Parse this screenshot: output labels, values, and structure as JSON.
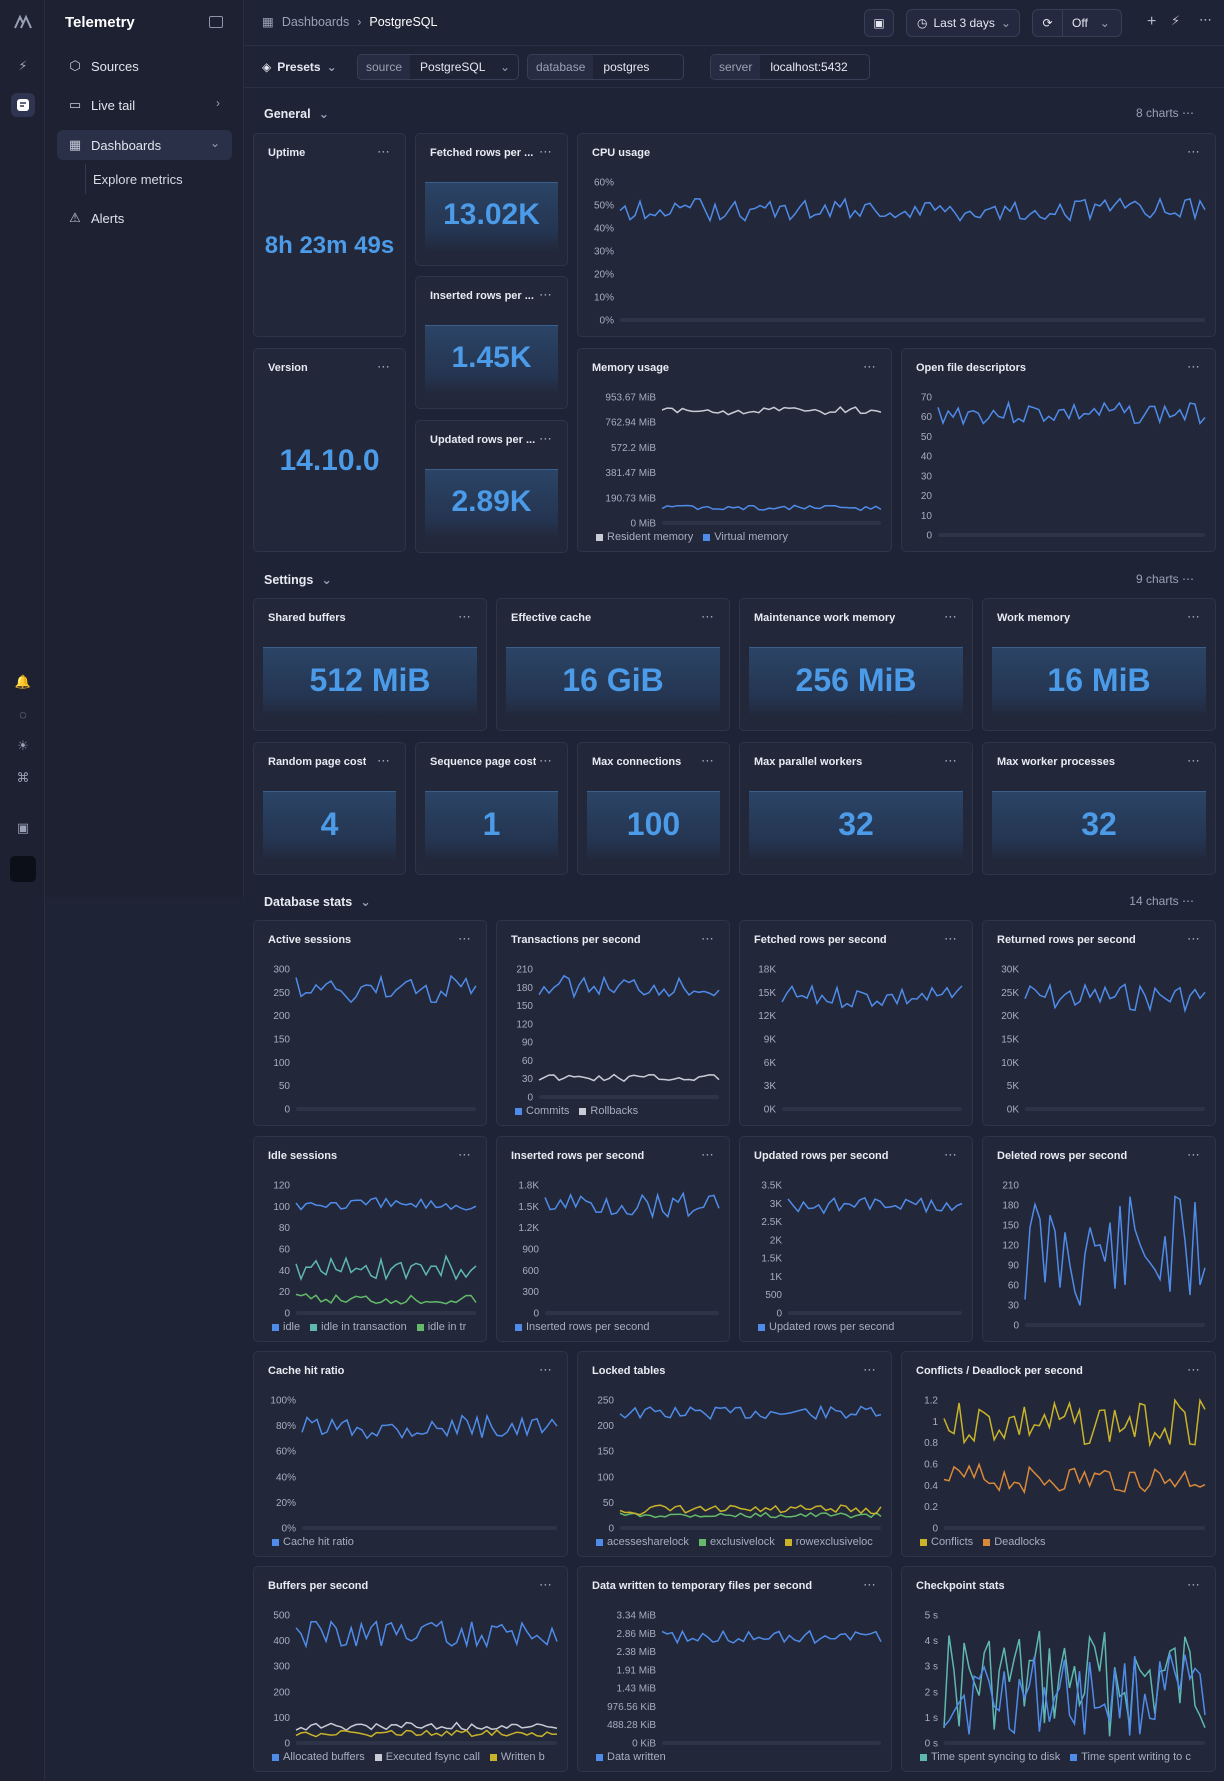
{
  "app": {
    "title": "Telemetry"
  },
  "nav": {
    "sources": "Sources",
    "live_tail": "Live tail",
    "dashboards": "Dashboards",
    "explore": "Explore metrics",
    "alerts": "Alerts"
  },
  "breadcrumb": {
    "parent": "Dashboards",
    "current": "PostgreSQL"
  },
  "toolbar": {
    "range": "Last 3 days",
    "refresh": "Off"
  },
  "filters": {
    "presets": "Presets",
    "source_key": "source",
    "source_val": "PostgreSQL",
    "db_key": "database",
    "db_val": "postgres",
    "server_key": "server",
    "server_val": "localhost:5432"
  },
  "sections": {
    "general": "General",
    "general_count": "8 charts",
    "settings": "Settings",
    "settings_count": "9 charts",
    "dbstats": "Database stats",
    "dbstats_count": "14 charts"
  },
  "stats": {
    "uptime": {
      "title": "Uptime",
      "value": "8h 23m 49s"
    },
    "version": {
      "title": "Version",
      "value": "14.10.0"
    },
    "fetched": {
      "title": "Fetched rows per ...",
      "value": "13.02K"
    },
    "inserted": {
      "title": "Inserted rows per ...",
      "value": "1.45K"
    },
    "updated": {
      "title": "Updated rows per ...",
      "value": "2.89K"
    },
    "shared": {
      "title": "Shared buffers",
      "value": "512 MiB"
    },
    "effcache": {
      "title": "Effective cache",
      "value": "16 GiB"
    },
    "maintwm": {
      "title": "Maintenance work memory",
      "value": "256 MiB"
    },
    "workmem": {
      "title": "Work memory",
      "value": "16 MiB"
    },
    "rpc": {
      "title": "Random page cost",
      "value": "4"
    },
    "spc": {
      "title": "Sequence page cost",
      "value": "1"
    },
    "maxconn": {
      "title": "Max connections",
      "value": "100"
    },
    "mpw": {
      "title": "Max parallel workers",
      "value": "32"
    },
    "mwp": {
      "title": "Max worker processes",
      "value": "32"
    }
  },
  "charts": {
    "cpu": {
      "title": "CPU usage",
      "ticks": [
        "60%",
        "50%",
        "40%",
        "30%",
        "20%",
        "10%",
        "0%"
      ],
      "legend": []
    },
    "mem": {
      "title": "Memory usage",
      "ticks": [
        "953.67 MiB",
        "762.94 MiB",
        "572.2 MiB",
        "381.47 MiB",
        "190.73 MiB",
        "0 MiB"
      ],
      "legend": [
        "Resident memory",
        "Virtual memory"
      ]
    },
    "ofd": {
      "title": "Open file descriptors",
      "ticks": [
        "70",
        "60",
        "50",
        "40",
        "30",
        "20",
        "10",
        "0"
      ],
      "legend": []
    },
    "active": {
      "title": "Active sessions",
      "ticks": [
        "300",
        "250",
        "200",
        "150",
        "100",
        "50",
        "0"
      ],
      "legend": []
    },
    "tps": {
      "title": "Transactions per second",
      "ticks": [
        "210",
        "180",
        "150",
        "120",
        "90",
        "60",
        "30",
        "0"
      ],
      "legend": [
        "Commits",
        "Rollbacks"
      ]
    },
    "fetchps": {
      "title": "Fetched rows per second",
      "ticks": [
        "18K",
        "15K",
        "12K",
        "9K",
        "6K",
        "3K",
        "0K"
      ],
      "legend": []
    },
    "retps": {
      "title": "Returned rows per second",
      "ticks": [
        "30K",
        "25K",
        "20K",
        "15K",
        "10K",
        "5K",
        "0K"
      ],
      "legend": []
    },
    "idle": {
      "title": "Idle sessions",
      "ticks": [
        "120",
        "100",
        "80",
        "60",
        "40",
        "20",
        "0"
      ],
      "legend": [
        "idle",
        "idle in transaction",
        "idle in tr"
      ]
    },
    "insps": {
      "title": "Inserted rows per second",
      "ticks": [
        "1.8K",
        "1.5K",
        "1.2K",
        "900",
        "600",
        "300",
        "0"
      ],
      "legend": [
        "Inserted rows per second"
      ]
    },
    "updps": {
      "title": "Updated rows per second",
      "ticks": [
        "3.5K",
        "3K",
        "2.5K",
        "2K",
        "1.5K",
        "1K",
        "500",
        "0"
      ],
      "legend": [
        "Updated rows per second"
      ]
    },
    "delps": {
      "title": "Deleted rows per second",
      "ticks": [
        "210",
        "180",
        "150",
        "120",
        "90",
        "60",
        "30",
        "0"
      ],
      "legend": []
    },
    "chr": {
      "title": "Cache hit ratio",
      "ticks": [
        "100%",
        "80%",
        "60%",
        "40%",
        "20%",
        "0%"
      ],
      "legend": [
        "Cache hit ratio"
      ]
    },
    "locked": {
      "title": "Locked tables",
      "ticks": [
        "250",
        "200",
        "150",
        "100",
        "50",
        "0"
      ],
      "legend": [
        "acessesharelock",
        "exclusivelock",
        "rowexclusiveloc"
      ]
    },
    "conf": {
      "title": "Conflicts / Deadlock per second",
      "ticks": [
        "1.2",
        "1",
        "0.8",
        "0.6",
        "0.4",
        "0.2",
        "0"
      ],
      "legend": [
        "Conflicts",
        "Deadlocks"
      ]
    },
    "bufps": {
      "title": "Buffers per second",
      "ticks": [
        "500",
        "400",
        "300",
        "200",
        "100",
        "0"
      ],
      "legend": [
        "Allocated buffers",
        "Executed fsync call",
        "Written b"
      ]
    },
    "tmpw": {
      "title": "Data written to temporary files per second",
      "ticks": [
        "3.34 MiB",
        "2.86 MiB",
        "2.38 MiB",
        "1.91 MiB",
        "1.43 MiB",
        "976.56 KiB",
        "488.28 KiB",
        "0 KiB"
      ],
      "legend": [
        "Data written"
      ]
    },
    "ckpt": {
      "title": "Checkpoint stats",
      "ticks": [
        "5 s",
        "4 s",
        "3 s",
        "2 s",
        "1 s",
        "0 s"
      ],
      "legend": [
        "Time spent syncing to disk",
        "Time spent writing to c"
      ]
    }
  },
  "colors": {
    "blue": "#4f8be8",
    "teal": "#5fb8b0",
    "white": "#c9ccd6",
    "yellow": "#c9b32a",
    "orange": "#d9893a",
    "green": "#64b96a",
    "accent": "#4c9be8"
  }
}
